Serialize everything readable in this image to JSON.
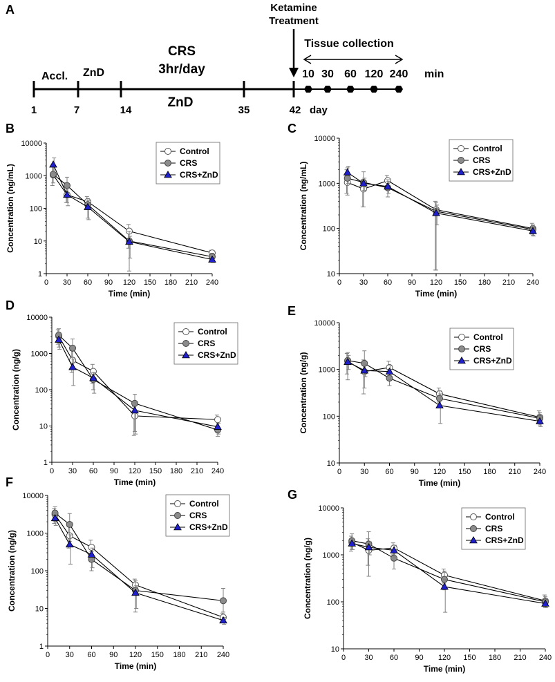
{
  "panel_a": {
    "panel_label": "A",
    "stage_labels": {
      "accl": "Accl.",
      "znd_top": "ZnD",
      "crs_line1": "CRS",
      "crs_line2": "3hr/day",
      "znd_bottom": "ZnD",
      "ketamine_line1": "Ketamine",
      "ketamine_line2": "Treatment",
      "tissue": "Tissue collection",
      "min_unit": "min",
      "day_unit": "day"
    },
    "day_ticks": [
      "1",
      "7",
      "14",
      "35",
      "42"
    ],
    "minute_ticks": [
      "10",
      "30",
      "60",
      "120",
      "240"
    ]
  },
  "colors": {
    "control_fill": "#ffffff",
    "crs_fill": "#8c8c8c",
    "crs_znd_fill": "#1f1fcc",
    "line": "#000000",
    "error_bar": "#808080"
  },
  "chart_data": [
    {
      "panel": "B",
      "type": "line",
      "xlabel": "Time (min)",
      "ylabel": "Concentration (ng/mL)",
      "yscale": "log",
      "ylim": [
        1,
        10000
      ],
      "xlim": [
        0,
        240
      ],
      "yticks": [
        "1",
        "10",
        "100",
        "1000",
        "10000"
      ],
      "xticks": [
        "0",
        "30",
        "60",
        "90",
        "120",
        "150",
        "180",
        "210",
        "240"
      ],
      "legend_position": "top-right",
      "series": [
        {
          "name": "Control",
          "marker": "circle-open",
          "x": [
            10,
            30,
            60,
            120,
            240
          ],
          "y": [
            1050,
            260,
            160,
            20,
            4.3
          ],
          "err_hi": [
            1900,
            600,
            230,
            32,
            5.2
          ],
          "err_lo": [
            500,
            150,
            110,
            6,
            3.6
          ]
        },
        {
          "name": "CRS",
          "marker": "circle-filled",
          "x": [
            10,
            30,
            60,
            120,
            240
          ],
          "y": [
            1100,
            500,
            130,
            10,
            3.3
          ],
          "err_hi": [
            2000,
            900,
            200,
            20,
            4.2
          ],
          "err_lo": [
            600,
            150,
            50,
            1.2,
            2.6
          ]
        },
        {
          "name": "CRS+ZnD",
          "marker": "triangle",
          "x": [
            10,
            30,
            60,
            120,
            240
          ],
          "y": [
            2200,
            260,
            110,
            9.5,
            2.7
          ],
          "err_hi": [
            3500,
            450,
            170,
            14,
            3.2
          ],
          "err_lo": [
            1200,
            120,
            45,
            3,
            2.2
          ]
        }
      ]
    },
    {
      "panel": "C",
      "type": "line",
      "xlabel": "Time (min)",
      "ylabel": "Concentration (ng/mL)",
      "yscale": "log",
      "ylim": [
        10,
        10000
      ],
      "xlim": [
        0,
        240
      ],
      "yticks": [
        "10",
        "100",
        "1000",
        "10000"
      ],
      "xticks": [
        "0",
        "30",
        "60",
        "90",
        "120",
        "150",
        "180",
        "210",
        "240"
      ],
      "legend_position": "top-right",
      "series": [
        {
          "name": "Control",
          "marker": "circle-open",
          "x": [
            10,
            30,
            60,
            120,
            240
          ],
          "y": [
            1050,
            750,
            1150,
            260,
            100
          ],
          "err_hi": [
            2000,
            1200,
            1500,
            400,
            130
          ],
          "err_lo": [
            600,
            300,
            800,
            12,
            75
          ]
        },
        {
          "name": "CRS",
          "marker": "circle-filled",
          "x": [
            10,
            30,
            60,
            120,
            240
          ],
          "y": [
            1300,
            1050,
            800,
            240,
            95
          ],
          "err_hi": [
            2200,
            1800,
            1200,
            380,
            120
          ],
          "err_lo": [
            550,
            300,
            500,
            12,
            70
          ]
        },
        {
          "name": "CRS+ZnD",
          "marker": "triangle",
          "x": [
            10,
            30,
            60,
            120,
            240
          ],
          "y": [
            1750,
            1000,
            850,
            220,
            88
          ],
          "err_hi": [
            2400,
            1300,
            1100,
            330,
            110
          ],
          "err_lo": [
            1000,
            700,
            600,
            120,
            68
          ]
        }
      ]
    },
    {
      "panel": "D",
      "type": "line",
      "xlabel": "Time (min)",
      "ylabel": "Concentration (ng/g)",
      "yscale": "log",
      "ylim": [
        1,
        10000
      ],
      "xlim": [
        0,
        240
      ],
      "yticks": [
        "1",
        "10",
        "100",
        "1000",
        "10000"
      ],
      "xticks": [
        "0",
        "30",
        "60",
        "90",
        "120",
        "150",
        "180",
        "210",
        "240"
      ],
      "legend_position": "top-right",
      "series": [
        {
          "name": "Control",
          "marker": "circle-open",
          "x": [
            10,
            30,
            60,
            120,
            240
          ],
          "y": [
            3000,
            650,
            320,
            19,
            15
          ],
          "err_hi": [
            4500,
            1200,
            500,
            35,
            20
          ],
          "err_lo": [
            1800,
            300,
            150,
            5.5,
            10
          ]
        },
        {
          "name": "CRS",
          "marker": "circle-filled",
          "x": [
            10,
            30,
            60,
            120,
            240
          ],
          "y": [
            3200,
            1400,
            190,
            42,
            7.8
          ],
          "err_hi": [
            4800,
            2500,
            300,
            75,
            10
          ],
          "err_lo": [
            1500,
            400,
            100,
            7,
            5.2
          ]
        },
        {
          "name": "CRS+ZnD",
          "marker": "triangle",
          "x": [
            10,
            30,
            60,
            120,
            240
          ],
          "y": [
            2400,
            420,
            210,
            27,
            9.5
          ],
          "err_hi": [
            3500,
            700,
            300,
            45,
            12
          ],
          "err_lo": [
            1300,
            130,
            80,
            6,
            6
          ]
        }
      ]
    },
    {
      "panel": "E",
      "type": "line",
      "xlabel": "Time (min)",
      "ylabel": "Concentration (ng/g)",
      "yscale": "log",
      "ylim": [
        10,
        10000
      ],
      "xlim": [
        0,
        240
      ],
      "yticks": [
        "10",
        "100",
        "1000",
        "10000"
      ],
      "xticks": [
        "0",
        "30",
        "60",
        "90",
        "120",
        "150",
        "180",
        "210",
        "240"
      ],
      "legend_position": "top-right",
      "series": [
        {
          "name": "Control",
          "marker": "circle-open",
          "x": [
            10,
            30,
            60,
            120,
            240
          ],
          "y": [
            1500,
            900,
            1100,
            300,
            95
          ],
          "err_hi": [
            2200,
            1600,
            1500,
            400,
            130
          ],
          "err_lo": [
            800,
            300,
            800,
            200,
            70
          ]
        },
        {
          "name": "CRS",
          "marker": "circle-filled",
          "x": [
            10,
            30,
            60,
            120,
            240
          ],
          "y": [
            1550,
            1350,
            650,
            240,
            90
          ],
          "err_hi": [
            2300,
            2500,
            1000,
            350,
            120
          ],
          "err_lo": [
            600,
            400,
            450,
            150,
            65
          ]
        },
        {
          "name": "CRS+ZnD",
          "marker": "triangle",
          "x": [
            10,
            30,
            60,
            120,
            240
          ],
          "y": [
            1450,
            950,
            900,
            170,
            78
          ],
          "err_hi": [
            2000,
            1300,
            1200,
            300,
            100
          ],
          "err_lo": [
            1000,
            700,
            600,
            70,
            60
          ]
        }
      ]
    },
    {
      "panel": "F",
      "type": "line",
      "xlabel": "Time (min)",
      "ylabel": "Concentration (ng/g)",
      "yscale": "log",
      "ylim": [
        1,
        10000
      ],
      "xlim": [
        0,
        240
      ],
      "yticks": [
        "1",
        "10",
        "100",
        "1000",
        "10000"
      ],
      "xticks": [
        "0",
        "30",
        "60",
        "90",
        "120",
        "150",
        "180",
        "210",
        "240"
      ],
      "legend_position": "top-right",
      "series": [
        {
          "name": "Control",
          "marker": "circle-open",
          "x": [
            10,
            30,
            60,
            120,
            240
          ],
          "y": [
            3100,
            850,
            420,
            42,
            5.8
          ],
          "err_hi": [
            4500,
            1500,
            650,
            60,
            7.5
          ],
          "err_lo": [
            1800,
            400,
            200,
            25,
            4.5
          ]
        },
        {
          "name": "CRS",
          "marker": "circle-filled",
          "x": [
            10,
            30,
            60,
            120,
            240
          ],
          "y": [
            3400,
            1700,
            200,
            30,
            16
          ],
          "err_hi": [
            5000,
            3300,
            320,
            55,
            34
          ],
          "err_lo": [
            2000,
            600,
            100,
            8,
            8
          ]
        },
        {
          "name": "CRS+ZnD",
          "marker": "triangle",
          "x": [
            10,
            30,
            60,
            120,
            240
          ],
          "y": [
            2500,
            500,
            270,
            26,
            4.8
          ],
          "err_hi": [
            3500,
            900,
            400,
            40,
            5.8
          ],
          "err_lo": [
            1600,
            150,
            120,
            10,
            3.8
          ]
        }
      ]
    },
    {
      "panel": "G",
      "type": "line",
      "xlabel": "Time (min)",
      "ylabel": "Concentration (ng/g)",
      "yscale": "log",
      "ylim": [
        10,
        10000
      ],
      "xlim": [
        0,
        240
      ],
      "yticks": [
        "10",
        "100",
        "1000",
        "10000"
      ],
      "xticks": [
        "0",
        "30",
        "60",
        "90",
        "120",
        "150",
        "180",
        "210",
        "240"
      ],
      "legend_position": "top-right",
      "series": [
        {
          "name": "Control",
          "marker": "circle-open",
          "x": [
            10,
            30,
            60,
            120,
            240
          ],
          "y": [
            1850,
            1250,
            1400,
            370,
            105
          ],
          "err_hi": [
            2500,
            2200,
            1800,
            500,
            140
          ],
          "err_lo": [
            1200,
            600,
            1000,
            250,
            80
          ]
        },
        {
          "name": "CRS",
          "marker": "circle-filled",
          "x": [
            10,
            30,
            60,
            120,
            240
          ],
          "y": [
            2000,
            1700,
            850,
            300,
            100
          ],
          "err_hi": [
            2800,
            3100,
            1200,
            450,
            130
          ],
          "err_lo": [
            1300,
            350,
            500,
            180,
            75
          ]
        },
        {
          "name": "CRS+ZnD",
          "marker": "triangle",
          "x": [
            10,
            30,
            60,
            120,
            240
          ],
          "y": [
            1750,
            1450,
            1250,
            210,
            92
          ],
          "err_hi": [
            2200,
            1900,
            1600,
            300,
            110
          ],
          "err_lo": [
            1300,
            1000,
            900,
            60,
            75
          ]
        }
      ]
    }
  ]
}
